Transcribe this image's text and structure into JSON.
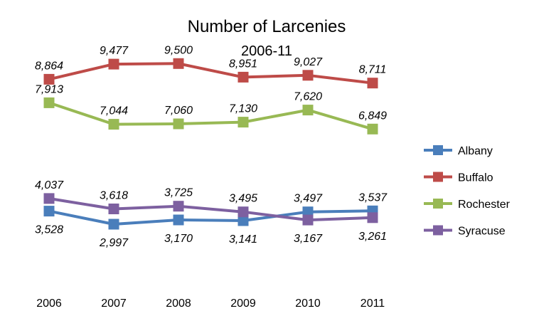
{
  "chart_data": {
    "type": "line",
    "title": "Number of Larcenies",
    "subtitle": "2006-11",
    "xlabel": "",
    "ylabel": "",
    "categories": [
      "2006",
      "2007",
      "2008",
      "2009",
      "2010",
      "2011"
    ],
    "ylim": [
      0,
      12000
    ],
    "grid": false,
    "legend_position": "right",
    "series": [
      {
        "name": "Albany",
        "color": "#4a7ebb",
        "values": [
          3528,
          2997,
          3170,
          3141,
          3497,
          3537
        ],
        "labels": [
          "3,528",
          "2,997",
          "3,170",
          "3,141",
          "3,497",
          "3,537"
        ],
        "label_side": [
          "below",
          "below",
          "below",
          "below",
          "above",
          "above"
        ]
      },
      {
        "name": "Buffalo",
        "color": "#be4b48",
        "values": [
          8864,
          9477,
          9500,
          8951,
          9027,
          8711
        ],
        "labels": [
          "8,864",
          "9,477",
          "9,500",
          "8,951",
          "9,027",
          "8,711"
        ],
        "label_side": [
          "above",
          "above",
          "above",
          "above",
          "above",
          "above"
        ]
      },
      {
        "name": "Rochester",
        "color": "#98b954",
        "values": [
          7913,
          7044,
          7060,
          7130,
          7620,
          6849
        ],
        "labels": [
          "7,913",
          "7,044",
          "7,060",
          "7,130",
          "7,620",
          "6,849"
        ],
        "label_side": [
          "above",
          "above",
          "above",
          "above",
          "above",
          "above"
        ]
      },
      {
        "name": "Syracuse",
        "color": "#7d60a0",
        "values": [
          4037,
          3618,
          3725,
          3495,
          3167,
          3261
        ],
        "labels": [
          "4,037",
          "3,618",
          "3,725",
          "3,495",
          "3,167",
          "3,261"
        ],
        "label_side": [
          "above",
          "above",
          "above",
          "above",
          "below",
          "below"
        ]
      }
    ]
  }
}
